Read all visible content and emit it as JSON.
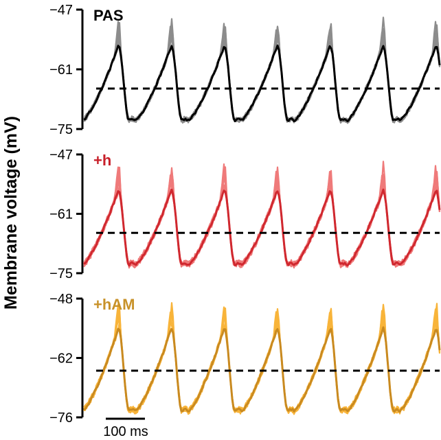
{
  "chart_data": {
    "type": "line",
    "ylabel": "Membrane voltage (mV)",
    "scale_bar": {
      "value_ms": 100,
      "label": "100 ms"
    },
    "grid": false,
    "panels": [
      {
        "label": "PAS",
        "label_color": "#000000",
        "trace_color": "#000000",
        "trial_color": "#8c8c8c",
        "ylim": [
          -75,
          -47
        ],
        "yticks": [
          "−47",
          "−61",
          "−75"
        ],
        "threshold": -65.5,
        "peak_v": -55.5,
        "trough_v": -73.0,
        "phase_ms": 0
      },
      {
        "label": "+h",
        "label_color": "#c8202a",
        "trace_color": "#d0282f",
        "trial_color": "#ef7a7a",
        "ylim": [
          -75,
          -47
        ],
        "yticks": [
          "−47",
          "−61",
          "−75"
        ],
        "threshold": -65.5,
        "peak_v": -55.5,
        "trough_v": -73.0,
        "phase_ms": 0
      },
      {
        "label": "+hAM",
        "label_color": "#c8922a",
        "trace_color": "#c98a20",
        "trial_color": "#f8b43a",
        "ylim": [
          -76,
          -48
        ],
        "yticks": [
          "−48",
          "−62",
          "−76"
        ],
        "threshold": -65.0,
        "peak_v": -55.0,
        "trough_v": -74.5,
        "phase_ms": 0
      }
    ],
    "cycle_period_ms": 145,
    "time_range_ms": [
      0,
      975
    ],
    "n_trials": 6
  }
}
